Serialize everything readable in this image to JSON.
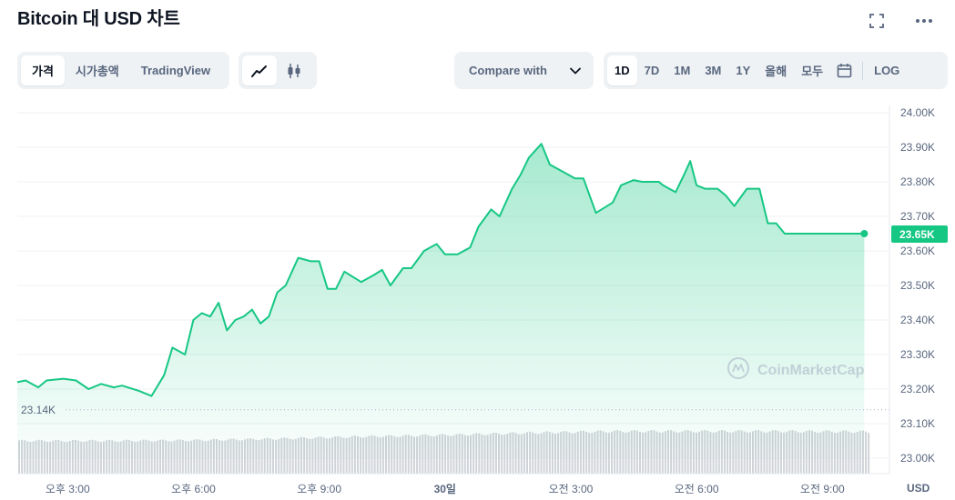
{
  "title": "Bitcoin 대 USD 차트",
  "toolbar": {
    "views": [
      "가격",
      "시가총액",
      "TradingView"
    ],
    "compare_label": "Compare with",
    "ranges": [
      "1D",
      "7D",
      "1M",
      "3M",
      "1Y",
      "올해",
      "모두"
    ],
    "log_label": "LOG"
  },
  "colors": {
    "line": "#16c784",
    "fill_top": "#16c784",
    "badge": "#16c784",
    "volume": "#d0d3d8",
    "grid": "#eff2f5"
  },
  "watermark": "CoinMarketCap",
  "chart_data": {
    "type": "area",
    "title": "",
    "xlabel": "",
    "ylabel": "USD",
    "ylim": [
      23000,
      24000
    ],
    "yticks": [
      24000,
      23900,
      23800,
      23700,
      23600,
      23500,
      23400,
      23300,
      23200,
      23100,
      23000
    ],
    "ytick_labels": [
      "24.00K",
      "23.90K",
      "23.80K",
      "23.70K",
      "23.60K",
      "23.50K",
      "23.40K",
      "23.30K",
      "23.20K",
      "23.10K",
      "23.00K"
    ],
    "xlim": [
      13.8,
      34.6
    ],
    "xtick_values": [
      15,
      18,
      21,
      24,
      27,
      30,
      33
    ],
    "xtick_labels": [
      "오후 3:00",
      "오후 6:00",
      "오후 9:00",
      "30일",
      "오전 3:00",
      "오전 6:00",
      "오전 9:00"
    ],
    "unit_label": "USD",
    "reference_line": {
      "value": 23140,
      "label": "23.14K"
    },
    "current": {
      "value": 23650,
      "label": "23.65K"
    },
    "series": [
      {
        "x": [
          13.8,
          14.0,
          14.3,
          14.5,
          14.9,
          15.2,
          15.5,
          15.8,
          16.1,
          16.3,
          16.7,
          17.0,
          17.3,
          17.5,
          17.8,
          18.0,
          18.2,
          18.4,
          18.6,
          18.8,
          19.0,
          19.2,
          19.4,
          19.6,
          19.8,
          20.0,
          20.2,
          20.5,
          20.8,
          21.0,
          21.2,
          21.4,
          21.6,
          22.0,
          22.3,
          22.5,
          22.7,
          23.0,
          23.2,
          23.5,
          23.8,
          24.0,
          24.3,
          24.6,
          24.8,
          25.1,
          25.3,
          25.6,
          25.8,
          26.0,
          26.3,
          26.5,
          26.8,
          27.1,
          27.3,
          27.6,
          28.0,
          28.2,
          28.5,
          28.7,
          28.9,
          29.1,
          29.2,
          29.35,
          29.5,
          29.7,
          29.85,
          30.0,
          30.2,
          30.5,
          30.7,
          30.9,
          31.2,
          31.5,
          31.7,
          31.9,
          32.1,
          32.4,
          32.6,
          32.85,
          33.0,
          33.2,
          33.4,
          33.6,
          33.8,
          34.0,
          34.2,
          34.4,
          34.6
        ],
        "y": [
          23220,
          23225,
          23205,
          23225,
          23230,
          23225,
          23200,
          23215,
          23205,
          23210,
          23195,
          23180,
          23240,
          23320,
          23300,
          23400,
          23420,
          23410,
          23450,
          23370,
          23400,
          23410,
          23430,
          23390,
          23410,
          23480,
          23500,
          23580,
          23570,
          23570,
          23490,
          23490,
          23540,
          23510,
          23530,
          23545,
          23500,
          23550,
          23550,
          23600,
          23620,
          23590,
          23590,
          23610,
          23670,
          23720,
          23700,
          23780,
          23820,
          23870,
          23910,
          23850,
          23830,
          23810,
          23810,
          23710,
          23740,
          23790,
          23805,
          23800,
          23800,
          23800,
          23790,
          23780,
          23770,
          23820,
          23860,
          23790,
          23780,
          23780,
          23760,
          23730,
          23780,
          23780,
          23680,
          23680,
          23650,
          23650,
          23650,
          23650,
          23650,
          23650,
          23650,
          23650,
          23650,
          23650,
          23650,
          23650,
          23650
        ]
      }
    ],
    "volume": {
      "x": [
        13.8,
        16.0,
        18.0,
        20.0,
        22.0,
        24.0,
        26.0,
        28.0,
        30.0,
        32.0,
        34.6
      ],
      "v": [
        0.62,
        0.62,
        0.63,
        0.66,
        0.7,
        0.73,
        0.77,
        0.8,
        0.8,
        0.8,
        0.79
      ]
    }
  }
}
